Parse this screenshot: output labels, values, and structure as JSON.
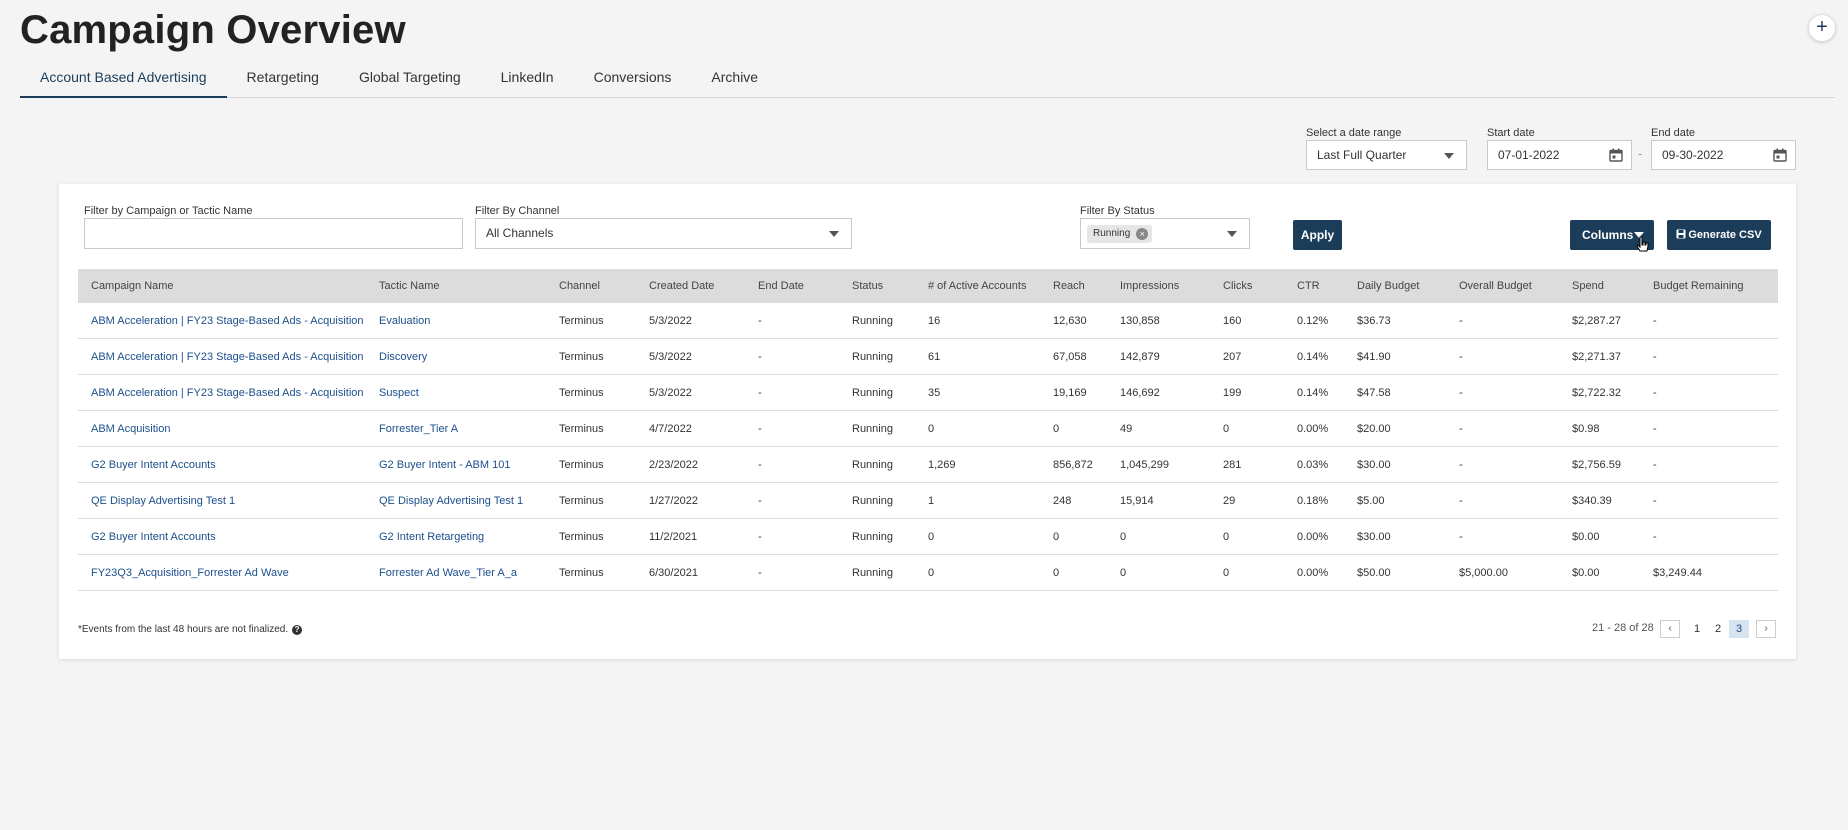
{
  "page": {
    "title": "Campaign Overview"
  },
  "tabs": [
    "Account Based Advertising",
    "Retargeting",
    "Global Targeting",
    "LinkedIn",
    "Conversions",
    "Archive"
  ],
  "date_controls": {
    "range_label": "Select a date range",
    "range_value": "Last Full Quarter",
    "start_label": "Start date",
    "start_value": "07-01-2022",
    "end_label": "End date",
    "end_value": "09-30-2022",
    "separator": "-"
  },
  "filters": {
    "name_label": "Filter by Campaign or Tactic Name",
    "name_value": "",
    "channel_label": "Filter By Channel",
    "channel_value": "All Channels",
    "status_label": "Filter By Status",
    "status_chip": "Running",
    "apply_label": "Apply",
    "columns_label": "Columns",
    "csv_label": "Generate CSV"
  },
  "table": {
    "columns": [
      "Campaign Name",
      "Tactic Name",
      "Channel",
      "Created Date",
      "End Date",
      "Status",
      "# of Active Accounts",
      "Reach",
      "Impressions",
      "Clicks",
      "CTR",
      "Daily Budget",
      "Overall Budget",
      "Spend",
      "Budget Remaining"
    ],
    "rows": [
      [
        "ABM Acceleration | FY23 Stage-Based Ads - Acquisition",
        "Evaluation",
        "Terminus",
        "5/3/2022",
        "-",
        "Running",
        "16",
        "12,630",
        "130,858",
        "160",
        "0.12%",
        "$36.73",
        "-",
        "$2,287.27",
        "-"
      ],
      [
        "ABM Acceleration | FY23 Stage-Based Ads - Acquisition",
        "Discovery",
        "Terminus",
        "5/3/2022",
        "-",
        "Running",
        "61",
        "67,058",
        "142,879",
        "207",
        "0.14%",
        "$41.90",
        "-",
        "$2,271.37",
        "-"
      ],
      [
        "ABM Acceleration | FY23 Stage-Based Ads - Acquisition",
        "Suspect",
        "Terminus",
        "5/3/2022",
        "-",
        "Running",
        "35",
        "19,169",
        "146,692",
        "199",
        "0.14%",
        "$47.58",
        "-",
        "$2,722.32",
        "-"
      ],
      [
        "ABM Acquisition",
        "Forrester_Tier A",
        "Terminus",
        "4/7/2022",
        "-",
        "Running",
        "0",
        "0",
        "49",
        "0",
        "0.00%",
        "$20.00",
        "-",
        "$0.98",
        "-"
      ],
      [
        "G2 Buyer Intent Accounts",
        "G2 Buyer Intent - ABM 101",
        "Terminus",
        "2/23/2022",
        "-",
        "Running",
        "1,269",
        "856,872",
        "1,045,299",
        "281",
        "0.03%",
        "$30.00",
        "-",
        "$2,756.59",
        "-"
      ],
      [
        "QE Display Advertising Test 1",
        "QE Display Advertising Test 1",
        "Terminus",
        "1/27/2022",
        "-",
        "Running",
        "1",
        "248",
        "15,914",
        "29",
        "0.18%",
        "$5.00",
        "-",
        "$340.39",
        "-"
      ],
      [
        "G2 Buyer Intent Accounts",
        "G2 Intent Retargeting",
        "Terminus",
        "11/2/2021",
        "-",
        "Running",
        "0",
        "0",
        "0",
        "0",
        "0.00%",
        "$30.00",
        "-",
        "$0.00",
        "-"
      ],
      [
        "FY23Q3_Acquisition_Forrester Ad Wave",
        "Forrester Ad Wave_Tier A_a",
        "Terminus",
        "6/30/2021",
        "-",
        "Running",
        "0",
        "0",
        "0",
        "0",
        "0.00%",
        "$50.00",
        "$5,000.00",
        "$0.00",
        "$3,249.44"
      ]
    ]
  },
  "footer": {
    "note": "*Events from the last 48 hours are not finalized.",
    "range_text": "21 - 28 of 28",
    "pages": [
      "1",
      "2",
      "3"
    ],
    "current_page": "3"
  }
}
